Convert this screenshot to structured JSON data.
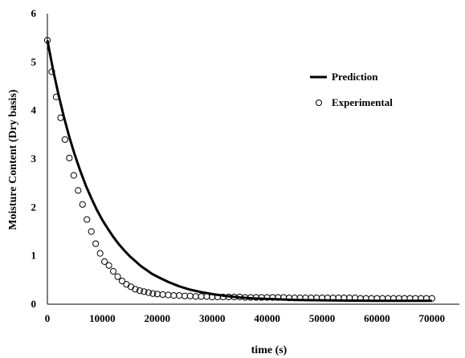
{
  "chart_data": {
    "type": "scatter",
    "title": "",
    "xlabel": "time (s)",
    "ylabel": "Moisture Content (Dry basis)",
    "xlim": [
      0,
      75000
    ],
    "ylim": [
      0,
      6
    ],
    "x_ticks": [
      0,
      10000,
      20000,
      30000,
      40000,
      50000,
      60000,
      70000
    ],
    "x_tick_labels": [
      "0",
      "10000",
      "20000",
      "30000",
      "40000",
      "50000",
      "60000",
      "70000"
    ],
    "y_ticks": [
      0,
      1,
      2,
      3,
      4,
      5,
      6
    ],
    "y_tick_labels": [
      "0",
      "1",
      "2",
      "3",
      "4",
      "5",
      "6"
    ],
    "grid": false,
    "legend_position": "right",
    "series": [
      {
        "name": "Prediction",
        "type": "line",
        "color": "#000000",
        "x": [
          0,
          1000,
          2000,
          3000,
          4000,
          5000,
          6000,
          7000,
          8000,
          9000,
          10000,
          11000,
          12000,
          13000,
          14000,
          15000,
          16000,
          17000,
          18000,
          19000,
          20000,
          22000,
          24000,
          26000,
          28000,
          30000,
          32500,
          35000,
          37500,
          40000,
          45000,
          50000,
          55000,
          60000,
          65000,
          70000
        ],
        "y": [
          5.45,
          4.86,
          4.34,
          3.87,
          3.45,
          3.08,
          2.75,
          2.45,
          2.19,
          1.95,
          1.74,
          1.56,
          1.39,
          1.24,
          1.11,
          0.99,
          0.89,
          0.79,
          0.71,
          0.63,
          0.57,
          0.46,
          0.37,
          0.3,
          0.25,
          0.21,
          0.17,
          0.14,
          0.12,
          0.11,
          0.09,
          0.08,
          0.075,
          0.07,
          0.07,
          0.07
        ]
      },
      {
        "name": "Experimental",
        "type": "scatter",
        "marker": "open-circle",
        "color": "#000000",
        "x": [
          0,
          800,
          1600,
          2400,
          3200,
          4000,
          4800,
          5600,
          6400,
          7200,
          8000,
          8800,
          9600,
          10400,
          11200,
          12000,
          12800,
          13600,
          14400,
          15200,
          16000,
          16800,
          17600,
          18400,
          19200,
          20000,
          21000,
          22000,
          23000,
          24000,
          25000,
          26000,
          27000,
          28000,
          29000,
          30000,
          31000,
          32000,
          33000,
          34000,
          35000,
          36000,
          37000,
          38000,
          39000,
          40000,
          41000,
          42000,
          43000,
          44000,
          45000,
          46000,
          47000,
          48000,
          49000,
          50000,
          51000,
          52000,
          53000,
          54000,
          55000,
          56000,
          57000,
          58000,
          59000,
          60000,
          61000,
          62000,
          63000,
          64000,
          65000,
          66000,
          67000,
          68000,
          69000,
          70000
        ],
        "y": [
          5.45,
          4.8,
          4.28,
          3.85,
          3.4,
          3.02,
          2.66,
          2.35,
          2.06,
          1.75,
          1.5,
          1.25,
          1.05,
          0.88,
          0.8,
          0.68,
          0.57,
          0.48,
          0.41,
          0.36,
          0.31,
          0.28,
          0.26,
          0.24,
          0.22,
          0.21,
          0.2,
          0.19,
          0.18,
          0.18,
          0.17,
          0.17,
          0.16,
          0.16,
          0.16,
          0.15,
          0.15,
          0.15,
          0.15,
          0.15,
          0.15,
          0.14,
          0.14,
          0.14,
          0.14,
          0.14,
          0.14,
          0.14,
          0.14,
          0.13,
          0.13,
          0.13,
          0.13,
          0.13,
          0.13,
          0.13,
          0.13,
          0.13,
          0.13,
          0.13,
          0.13,
          0.13,
          0.12,
          0.12,
          0.12,
          0.12,
          0.12,
          0.12,
          0.12,
          0.12,
          0.12,
          0.12,
          0.12,
          0.12,
          0.12,
          0.12
        ]
      }
    ]
  }
}
